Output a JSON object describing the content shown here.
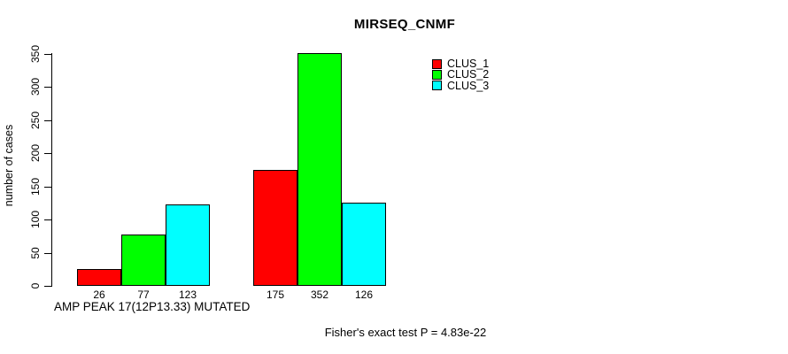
{
  "chart_data": {
    "type": "bar",
    "title": "MIRSEQ_CNMF",
    "ylabel": "number of cases",
    "xlabel": "AMP PEAK 17(12P13.33) MUTATED",
    "annotation": "Fisher's exact test P = 4.83e-22",
    "ylim": [
      0,
      350
    ],
    "yticks": [
      0,
      50,
      100,
      150,
      200,
      250,
      300,
      350
    ],
    "grid": false,
    "background": "#FFFFFF",
    "axis_color": "#000000",
    "groups": 2,
    "series": [
      {
        "name": "CLUS_1",
        "color": "#FF0000",
        "values": [
          26,
          175
        ]
      },
      {
        "name": "CLUS_2",
        "color": "#00FF00",
        "values": [
          77,
          352
        ]
      },
      {
        "name": "CLUS_3",
        "color": "#00FFFF",
        "values": [
          123,
          126
        ]
      }
    ],
    "bar_value_labels": [
      [
        "26",
        "77",
        "123"
      ],
      [
        "175",
        "352",
        "126"
      ]
    ],
    "legend": {
      "position": "top-right",
      "entries": [
        "CLUS_1",
        "CLUS_2",
        "CLUS_3"
      ]
    }
  }
}
